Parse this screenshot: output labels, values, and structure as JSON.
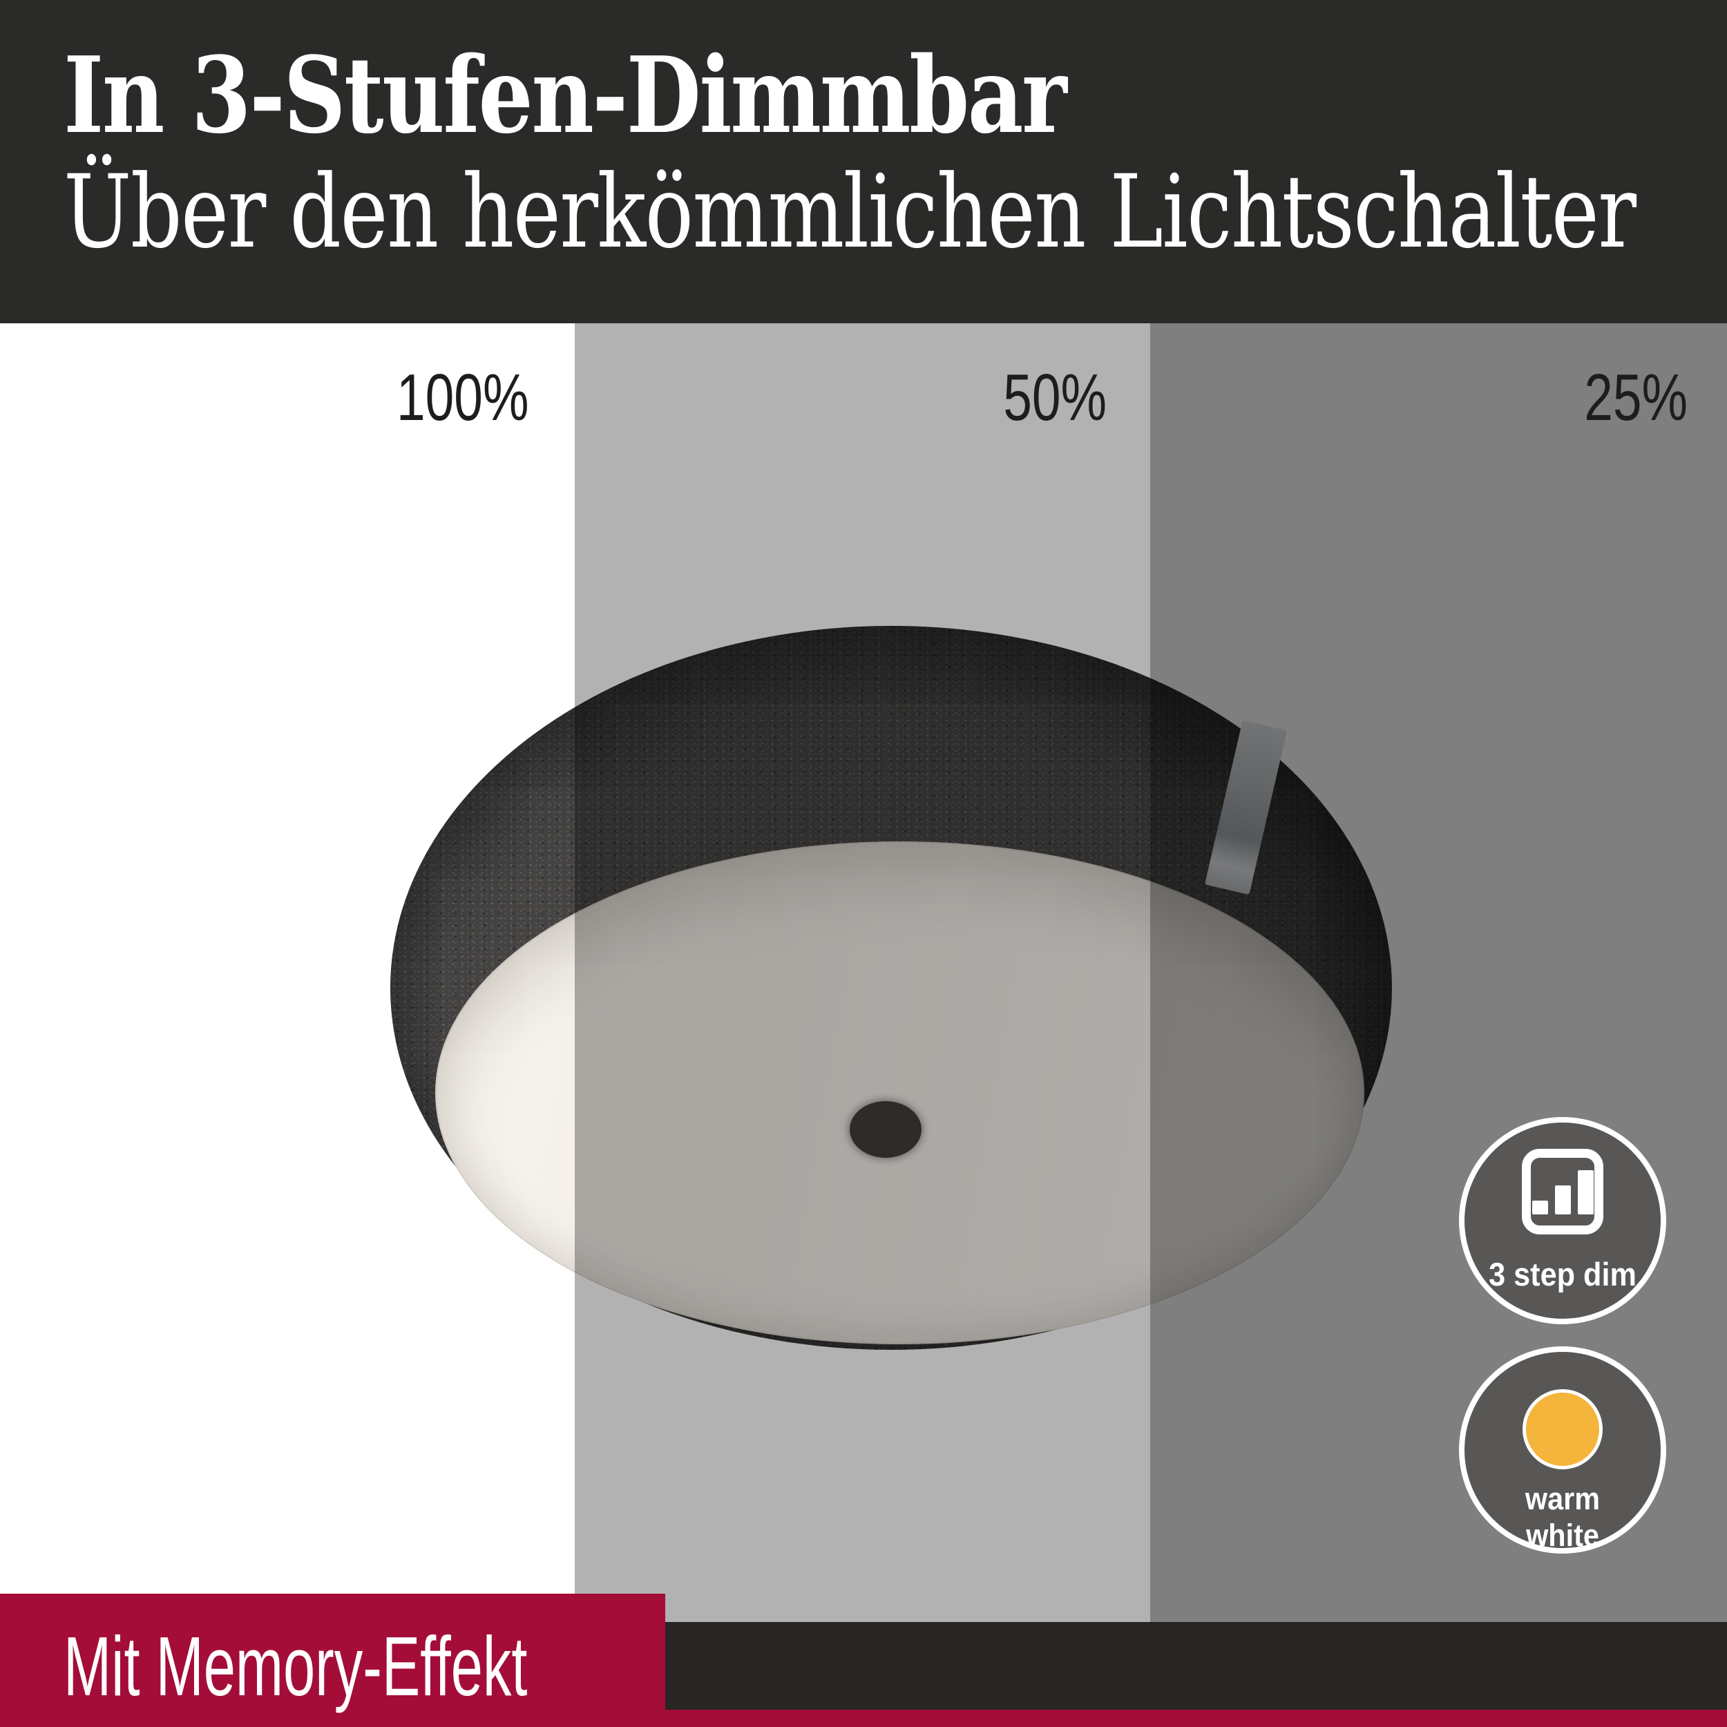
{
  "header": {
    "title": "In 3-Stufen-Dimmbar",
    "subtitle": "Über den herkömmlichen Lichtschalter"
  },
  "dim_levels": [
    {
      "label": "100%"
    },
    {
      "label": "50%"
    },
    {
      "label": "25%"
    }
  ],
  "badges": [
    {
      "icon": "bar-chart-steps-icon",
      "label": "3 step dim"
    },
    {
      "icon": "warm-white-dot-icon",
      "label_line1": "warm",
      "label_line2": "white"
    }
  ],
  "footer": {
    "memory_label": "Mit Memory-Effekt"
  },
  "colors": {
    "header_bg": "#2a2a28",
    "band_50_overlay": "rgba(0,0,0,0.30)",
    "band_25_overlay": "rgba(0,0,0,0.50)",
    "accent_red": "#a40d38",
    "badge_gray": "#595755",
    "warm_white_dot": "#f5b43c",
    "footer_dark": "#272625",
    "felt_gray": "#454443",
    "diffuser_white": "#f6f2ec"
  }
}
